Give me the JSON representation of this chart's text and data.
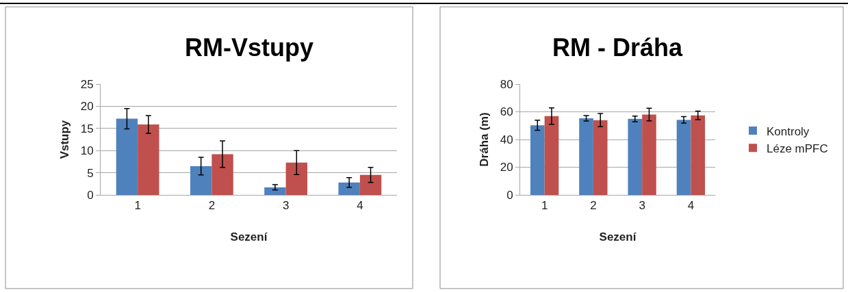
{
  "chart_data": [
    {
      "type": "bar",
      "title": "RM-Vstupy",
      "xlabel": "Sezení",
      "ylabel": "Vstupy",
      "categories": [
        "1",
        "2",
        "3",
        "4"
      ],
      "series": [
        {
          "color": "#4f81bd",
          "values": [
            17.2,
            6.5,
            1.7,
            2.8
          ],
          "errors": [
            2.3,
            2.0,
            0.6,
            1.1
          ]
        },
        {
          "color": "#c0504d",
          "values": [
            15.9,
            9.2,
            7.3,
            4.5
          ],
          "errors": [
            2.0,
            3.0,
            2.7,
            1.7
          ]
        }
      ],
      "ylim": [
        0,
        25
      ],
      "yticks": [
        0,
        5,
        10,
        15,
        20,
        25
      ],
      "grid": "y",
      "legend": false
    },
    {
      "type": "bar",
      "title": "RM - Dráha",
      "xlabel": "Sezení",
      "ylabel": "Dráha (m)",
      "categories": [
        "1",
        "2",
        "3",
        "4"
      ],
      "series": [
        {
          "name": "Kontroly",
          "color": "#4f81bd",
          "values": [
            50.3,
            55.3,
            54.9,
            54.2
          ],
          "errors": [
            3.6,
            2.0,
            2.0,
            2.4
          ]
        },
        {
          "name": "Léze mPFC",
          "color": "#c0504d",
          "values": [
            56.9,
            54.0,
            58.0,
            57.4
          ],
          "errors": [
            5.9,
            4.8,
            4.6,
            3.1
          ]
        }
      ],
      "ylim": [
        0,
        80
      ],
      "yticks": [
        0,
        20,
        40,
        60,
        80
      ],
      "grid": "y",
      "legend": "right"
    }
  ]
}
